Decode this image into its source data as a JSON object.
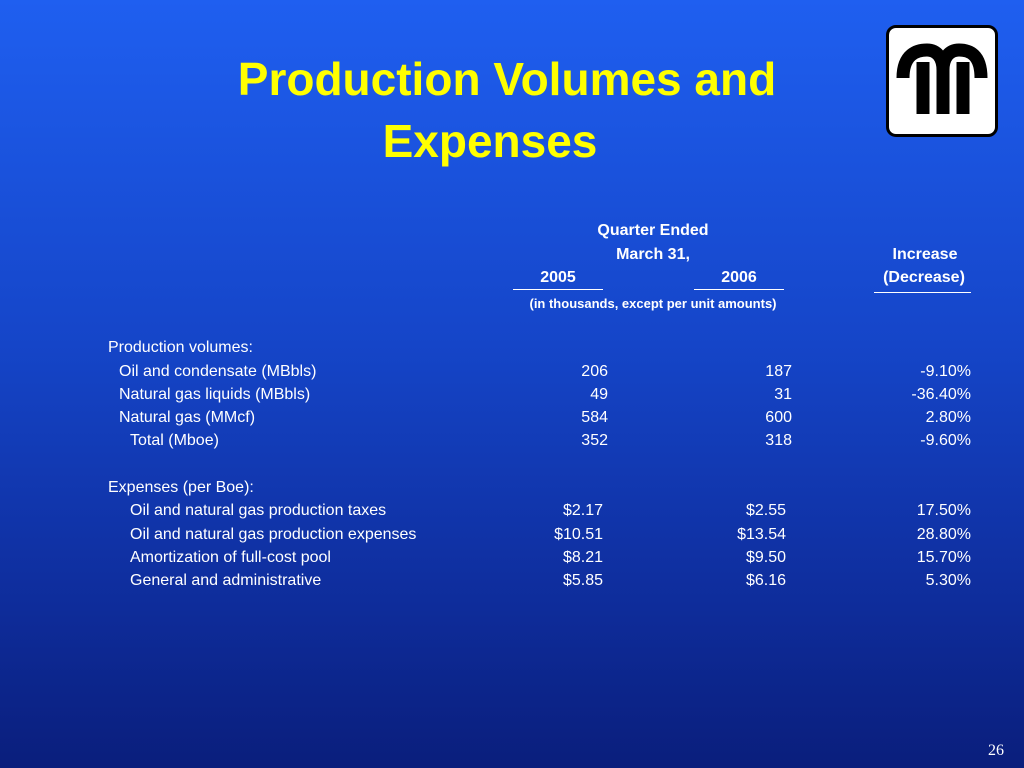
{
  "slide": {
    "title_line1": "Production Volumes and",
    "title_line2": "Expenses",
    "page_number": "26",
    "colors": {
      "title": "#ffff00",
      "background_top": "#1f5ff0",
      "background_bottom": "#0a1e7c",
      "text": "#ffffff"
    }
  },
  "logo": {
    "icon": "company-logo-icon"
  },
  "table": {
    "header": {
      "group_line1": "Quarter Ended",
      "group_line2": "March 31,",
      "col_2005": "2005",
      "col_2006": "2006",
      "increase_line1": "Increase",
      "increase_line2": "(Decrease)",
      "units_note": "(in thousands, except per unit amounts)"
    },
    "sections": [
      {
        "label": "Production volumes:",
        "rows": [
          {
            "label": "Oil and condensate (MBbls)",
            "v2005": "206",
            "v2006": "187",
            "change": "-9.10%"
          },
          {
            "label": "Natural gas liquids (MBbls)",
            "v2005": "49",
            "v2006": "31",
            "change": "-36.40%"
          },
          {
            "label": "Natural gas (MMcf)",
            "v2005": "584",
            "v2006": "600",
            "change": "2.80%"
          },
          {
            "label": "Total (Mboe)",
            "v2005": "352",
            "v2006": "318",
            "change": "-9.60%"
          }
        ]
      },
      {
        "label": "Expenses (per Boe):",
        "rows": [
          {
            "label": "Oil and natural gas production taxes",
            "v2005": "$2.17",
            "v2006": "$2.55",
            "change": "17.50%"
          },
          {
            "label": "Oil and natural gas production expenses",
            "v2005": "$10.51",
            "v2006": "$13.54",
            "change": "28.80%"
          },
          {
            "label": "Amortization of full-cost pool",
            "v2005": "$8.21",
            "v2006": "$9.50",
            "change": "15.70%"
          },
          {
            "label": "General and administrative",
            "v2005": "$5.85",
            "v2006": "$6.16",
            "change": "5.30%"
          }
        ]
      }
    ]
  }
}
